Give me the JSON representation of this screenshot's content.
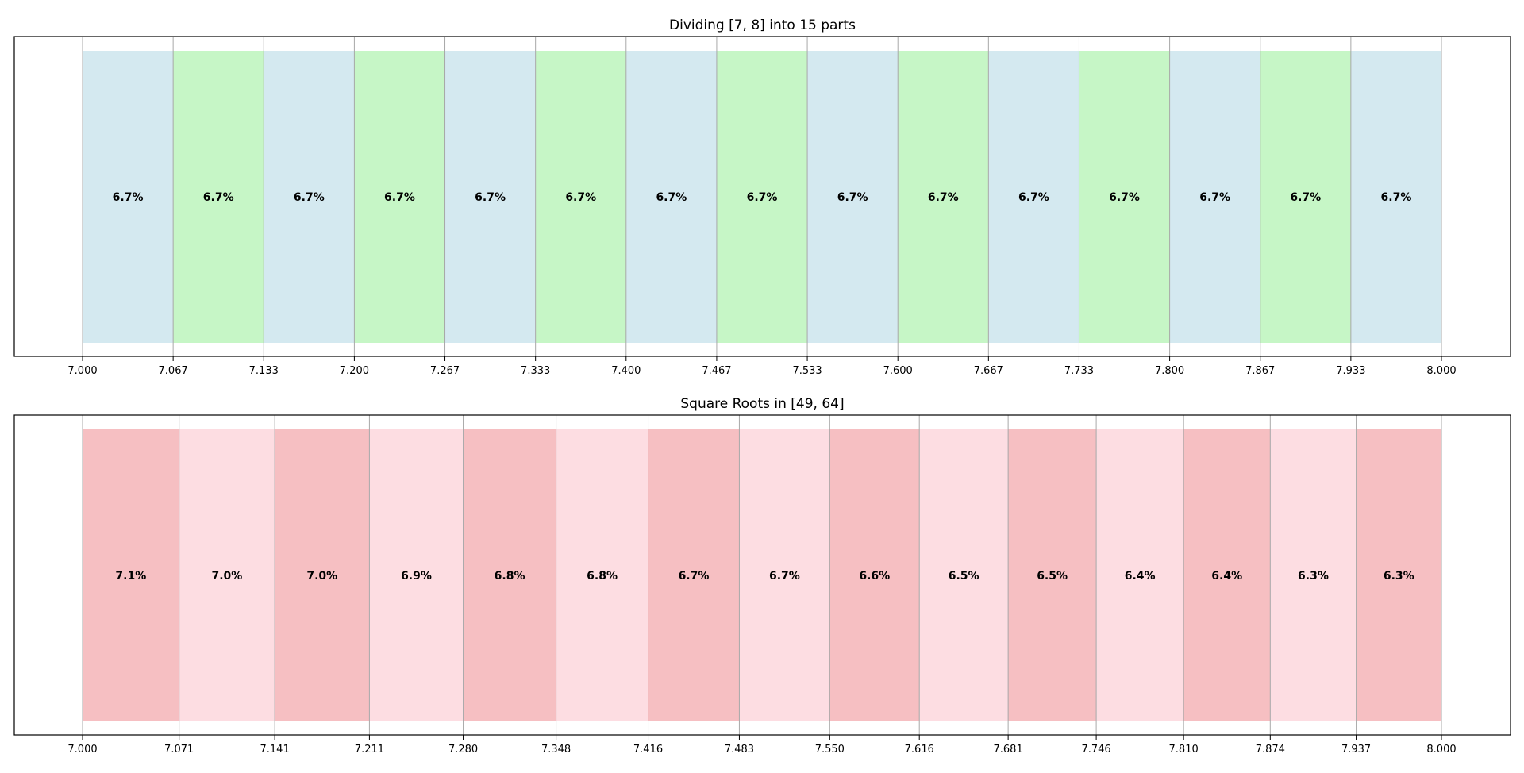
{
  "chart_data": [
    {
      "type": "bar",
      "orientation": "segmented-interval",
      "title": "Dividing [7, 8] into 15 parts",
      "xlabel": "",
      "ylabel": "",
      "xlim": [
        7.0,
        8.0
      ],
      "grid": false,
      "colors": [
        "#d4e9f0",
        "#c6f6c6"
      ],
      "boundaries": [
        7.0,
        7.066667,
        7.133333,
        7.2,
        7.266667,
        7.333333,
        7.4,
        7.466667,
        7.533333,
        7.6,
        7.666667,
        7.733333,
        7.8,
        7.866667,
        7.933333,
        8.0
      ],
      "tick_labels": [
        "7.000",
        "7.067",
        "7.133",
        "7.200",
        "7.267",
        "7.333",
        "7.400",
        "7.467",
        "7.533",
        "7.600",
        "7.667",
        "7.733",
        "7.800",
        "7.867",
        "7.933",
        "8.000"
      ],
      "segment_labels": [
        "6.7%",
        "6.7%",
        "6.7%",
        "6.7%",
        "6.7%",
        "6.7%",
        "6.7%",
        "6.7%",
        "6.7%",
        "6.7%",
        "6.7%",
        "6.7%",
        "6.7%",
        "6.7%",
        "6.7%"
      ]
    },
    {
      "type": "bar",
      "orientation": "segmented-interval",
      "title": "Square Roots in [49, 64]",
      "xlabel": "",
      "ylabel": "",
      "xlim": [
        7.0,
        8.0
      ],
      "grid": false,
      "colors": [
        "#f6bfc2",
        "#fddde2"
      ],
      "boundaries": [
        7.0,
        7.071068,
        7.141428,
        7.211103,
        7.28011,
        7.348469,
        7.416198,
        7.483315,
        7.549834,
        7.615773,
        7.681146,
        7.745967,
        7.81025,
        7.874008,
        7.937254,
        8.0
      ],
      "tick_labels": [
        "7.000",
        "7.071",
        "7.141",
        "7.211",
        "7.280",
        "7.348",
        "7.416",
        "7.483",
        "7.550",
        "7.616",
        "7.681",
        "7.746",
        "7.810",
        "7.874",
        "7.937",
        "8.000"
      ],
      "segment_labels": [
        "7.1%",
        "7.0%",
        "7.0%",
        "6.9%",
        "6.8%",
        "6.8%",
        "6.7%",
        "6.7%",
        "6.6%",
        "6.5%",
        "6.5%",
        "6.4%",
        "6.4%",
        "6.3%",
        "6.3%"
      ]
    }
  ]
}
